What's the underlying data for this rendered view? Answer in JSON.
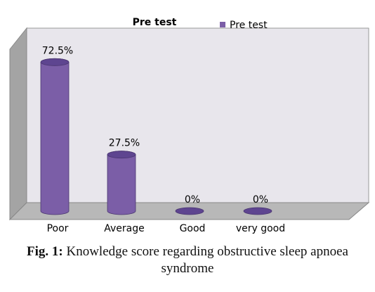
{
  "chart_data": {
    "type": "bar",
    "title": "Pre test",
    "categories": [
      "Poor",
      "Average",
      "Good",
      "very good"
    ],
    "series": [
      {
        "name": "Pre test",
        "color": "#7b5ea7",
        "values": [
          72.5,
          27.5,
          0,
          0
        ],
        "value_labels": [
          "72.5%",
          "27.5%",
          "0%",
          "0%"
        ]
      }
    ],
    "legend": "top-right"
  },
  "caption": {
    "label": "Fig. 1:",
    "text": "Knowledge score regarding obstructive sleep apnoea syndrome"
  }
}
